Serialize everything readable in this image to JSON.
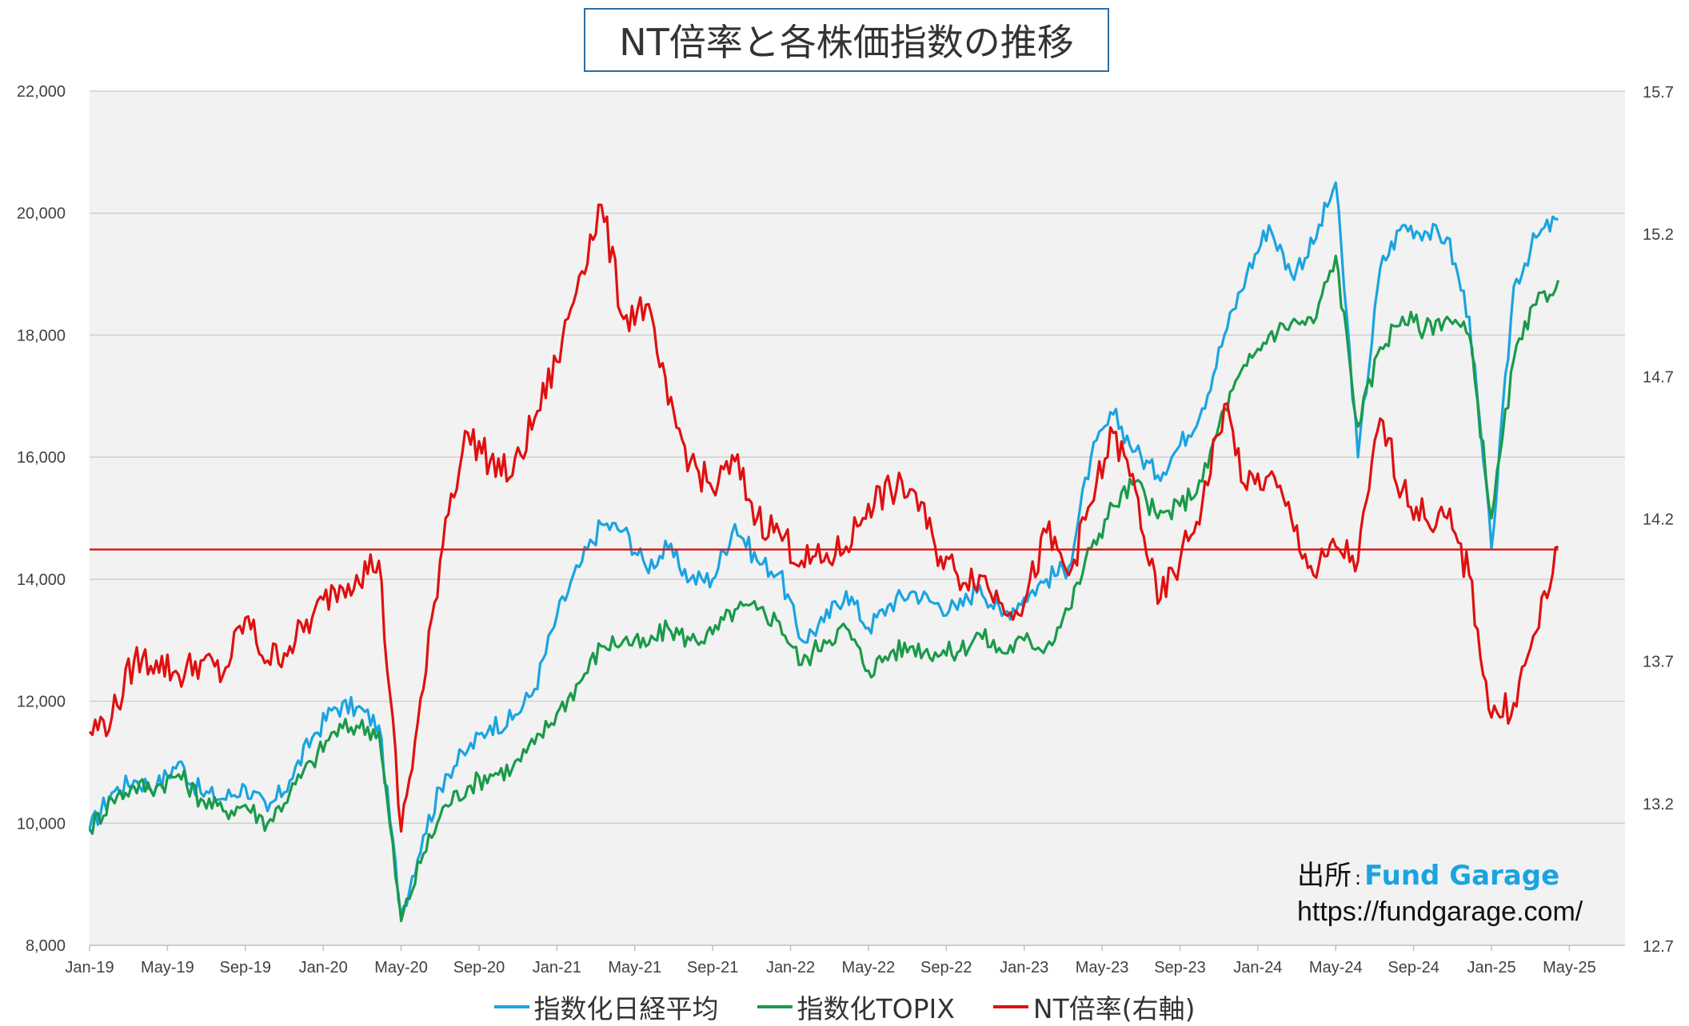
{
  "title": "NT倍率と各株価指数の推移",
  "source": {
    "label": "出所",
    "separator": ":",
    "name": "Fund Garage",
    "url": "https://fundgarage.com/"
  },
  "colors": {
    "nikkei": "#1aa4e0",
    "topix": "#1a9a4a",
    "nt": "#e01010",
    "avg": "#e01010",
    "grid": "#d0d0d0",
    "plot_bg": "#f2f2f2",
    "brand": "#1aa4e0"
  },
  "chart_data": {
    "type": "line",
    "x_tick_labels": [
      "Jan-19",
      "May-19",
      "Sep-19",
      "Jan-20",
      "May-20",
      "Sep-20",
      "Jan-21",
      "May-21",
      "Sep-21",
      "Jan-22",
      "May-22",
      "Sep-22",
      "Jan-23",
      "May-23",
      "Sep-23",
      "Jan-24",
      "May-24",
      "Sep-24",
      "Jan-25",
      "May-25"
    ],
    "y_left": {
      "min": 8000,
      "max": 22000,
      "ticks": [
        "8,000",
        "10,000",
        "12,000",
        "14,000",
        "16,000",
        "18,000",
        "20,000",
        "22,000"
      ]
    },
    "y_right": {
      "min": 12.7,
      "max": 15.7,
      "ticks": [
        "12.7",
        "13.2",
        "13.7",
        "14.2",
        "14.7",
        "15.2",
        "15.7"
      ]
    },
    "grid": true,
    "legend_position": "bottom",
    "series": [
      {
        "name": "指数化日経平均",
        "axis": "left",
        "color": "#1aa4e0",
        "points": [
          [
            0,
            9900
          ],
          [
            1,
            10500
          ],
          [
            2,
            10700
          ],
          [
            3,
            10600
          ],
          [
            4,
            11000
          ],
          [
            5,
            10500
          ],
          [
            6,
            10400
          ],
          [
            7,
            10600
          ],
          [
            8,
            10200
          ],
          [
            9,
            10700
          ],
          [
            10,
            11400
          ],
          [
            11,
            11900
          ],
          [
            12,
            11900
          ],
          [
            13,
            11600
          ],
          [
            14,
            8500
          ],
          [
            15,
            9800
          ],
          [
            16,
            10800
          ],
          [
            17,
            11200
          ],
          [
            18,
            11600
          ],
          [
            19,
            11700
          ],
          [
            20,
            12200
          ],
          [
            21,
            13400
          ],
          [
            22,
            14200
          ],
          [
            23,
            14900
          ],
          [
            24,
            14800
          ],
          [
            25,
            14200
          ],
          [
            26,
            14500
          ],
          [
            27,
            14000
          ],
          [
            28,
            14000
          ],
          [
            29,
            14900
          ],
          [
            30,
            14300
          ],
          [
            31,
            14100
          ],
          [
            32,
            13000
          ],
          [
            33,
            13300
          ],
          [
            34,
            13800
          ],
          [
            35,
            13200
          ],
          [
            36,
            13600
          ],
          [
            37,
            13800
          ],
          [
            38,
            13600
          ],
          [
            39,
            13500
          ],
          [
            40,
            13900
          ],
          [
            41,
            13400
          ],
          [
            42,
            13700
          ],
          [
            43,
            14000
          ],
          [
            44,
            14200
          ],
          [
            45,
            16000
          ],
          [
            46,
            16700
          ],
          [
            47,
            16100
          ],
          [
            48,
            15700
          ],
          [
            49,
            16200
          ],
          [
            50,
            16800
          ],
          [
            51,
            18000
          ],
          [
            52,
            19000
          ],
          [
            53,
            19800
          ],
          [
            54,
            19000
          ],
          [
            55,
            19500
          ],
          [
            56,
            20500
          ],
          [
            57,
            16000
          ],
          [
            58,
            19100
          ],
          [
            59,
            19800
          ],
          [
            60,
            19700
          ],
          [
            61,
            19600
          ],
          [
            62,
            18300
          ],
          [
            63,
            14500
          ],
          [
            64,
            18800
          ],
          [
            65,
            19600
          ],
          [
            66,
            19900
          ]
        ]
      },
      {
        "name": "指数化TOPIX",
        "axis": "left",
        "color": "#1a9a4a",
        "points": [
          [
            0,
            9900
          ],
          [
            1,
            10400
          ],
          [
            2,
            10600
          ],
          [
            3,
            10600
          ],
          [
            4,
            10800
          ],
          [
            5,
            10400
          ],
          [
            6,
            10200
          ],
          [
            7,
            10300
          ],
          [
            8,
            10000
          ],
          [
            9,
            10500
          ],
          [
            10,
            11000
          ],
          [
            11,
            11500
          ],
          [
            12,
            11600
          ],
          [
            13,
            11500
          ],
          [
            14,
            8400
          ],
          [
            15,
            9500
          ],
          [
            16,
            10300
          ],
          [
            17,
            10600
          ],
          [
            18,
            10800
          ],
          [
            19,
            10900
          ],
          [
            20,
            11300
          ],
          [
            21,
            11800
          ],
          [
            22,
            12300
          ],
          [
            23,
            12900
          ],
          [
            24,
            13000
          ],
          [
            25,
            12900
          ],
          [
            26,
            13200
          ],
          [
            27,
            13000
          ],
          [
            28,
            13100
          ],
          [
            29,
            13500
          ],
          [
            30,
            13500
          ],
          [
            31,
            13300
          ],
          [
            32,
            12600
          ],
          [
            33,
            13000
          ],
          [
            34,
            13200
          ],
          [
            35,
            12500
          ],
          [
            36,
            12800
          ],
          [
            37,
            12900
          ],
          [
            38,
            12800
          ],
          [
            39,
            12800
          ],
          [
            40,
            13100
          ],
          [
            41,
            12800
          ],
          [
            42,
            13000
          ],
          [
            43,
            12900
          ],
          [
            44,
            13500
          ],
          [
            45,
            14500
          ],
          [
            46,
            15200
          ],
          [
            47,
            15600
          ],
          [
            48,
            15000
          ],
          [
            49,
            15200
          ],
          [
            50,
            15600
          ],
          [
            51,
            16800
          ],
          [
            52,
            17500
          ],
          [
            53,
            18000
          ],
          [
            54,
            18200
          ],
          [
            55,
            18200
          ],
          [
            56,
            19300
          ],
          [
            57,
            16500
          ],
          [
            58,
            17800
          ],
          [
            59,
            18300
          ],
          [
            60,
            18100
          ],
          [
            61,
            18300
          ],
          [
            62,
            18000
          ],
          [
            63,
            15000
          ],
          [
            64,
            17600
          ],
          [
            65,
            18500
          ],
          [
            66,
            18900
          ]
        ]
      },
      {
        "name": "NT倍率(右軸)",
        "axis": "right",
        "color": "#e01010",
        "points": [
          [
            0,
            13.45
          ],
          [
            1,
            13.5
          ],
          [
            2,
            13.7
          ],
          [
            3,
            13.7
          ],
          [
            4,
            13.65
          ],
          [
            5,
            13.7
          ],
          [
            6,
            13.65
          ],
          [
            7,
            13.85
          ],
          [
            8,
            13.7
          ],
          [
            9,
            13.75
          ],
          [
            10,
            13.85
          ],
          [
            11,
            13.95
          ],
          [
            12,
            14.0
          ],
          [
            13,
            14.05
          ],
          [
            14,
            13.1
          ],
          [
            15,
            13.6
          ],
          [
            16,
            14.2
          ],
          [
            17,
            14.5
          ],
          [
            18,
            14.4
          ],
          [
            19,
            14.35
          ],
          [
            20,
            14.55
          ],
          [
            21,
            14.75
          ],
          [
            22,
            15.05
          ],
          [
            23,
            15.3
          ],
          [
            24,
            14.9
          ],
          [
            25,
            14.95
          ],
          [
            26,
            14.6
          ],
          [
            27,
            14.4
          ],
          [
            28,
            14.3
          ],
          [
            29,
            14.4
          ],
          [
            30,
            14.2
          ],
          [
            31,
            14.15
          ],
          [
            32,
            14.05
          ],
          [
            33,
            14.05
          ],
          [
            34,
            14.1
          ],
          [
            35,
            14.25
          ],
          [
            36,
            14.3
          ],
          [
            37,
            14.3
          ],
          [
            38,
            14.1
          ],
          [
            39,
            14.0
          ],
          [
            40,
            14.0
          ],
          [
            41,
            13.9
          ],
          [
            42,
            13.9
          ],
          [
            43,
            14.15
          ],
          [
            44,
            14.0
          ],
          [
            45,
            14.25
          ],
          [
            46,
            14.5
          ],
          [
            47,
            14.3
          ],
          [
            48,
            13.9
          ],
          [
            49,
            14.05
          ],
          [
            50,
            14.25
          ],
          [
            51,
            14.6
          ],
          [
            52,
            14.3
          ],
          [
            53,
            14.35
          ],
          [
            54,
            14.2
          ],
          [
            55,
            14.0
          ],
          [
            56,
            14.1
          ],
          [
            57,
            14.05
          ],
          [
            58,
            14.55
          ],
          [
            59,
            14.3
          ],
          [
            60,
            14.2
          ],
          [
            61,
            14.2
          ],
          [
            62,
            14.0
          ],
          [
            63,
            13.5
          ],
          [
            64,
            13.55
          ],
          [
            65,
            13.8
          ],
          [
            66,
            14.1
          ]
        ]
      },
      {
        "name": "",
        "axis": "right",
        "color": "#e01010",
        "style": "average",
        "points": [
          [
            0,
            14.09
          ],
          [
            66,
            14.09
          ]
        ]
      }
    ]
  }
}
